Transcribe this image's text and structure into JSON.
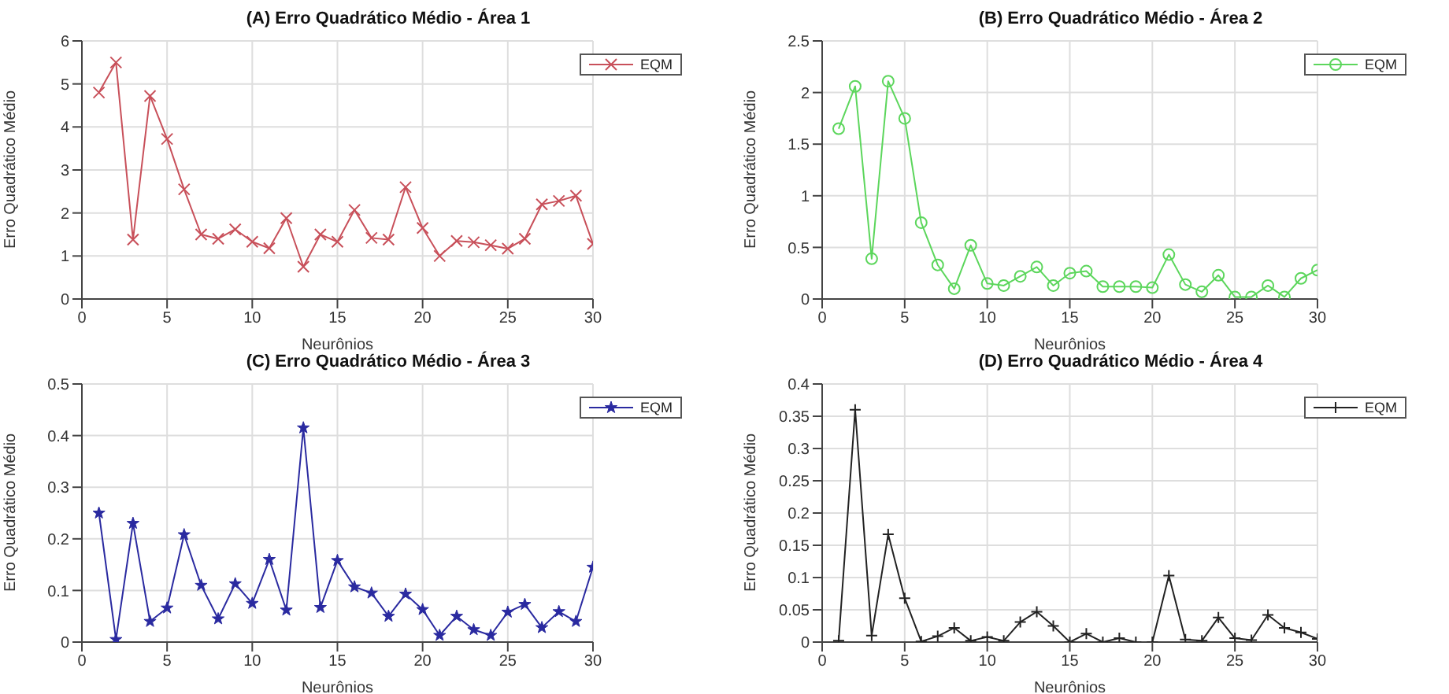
{
  "chart_data": [
    {
      "type": "line",
      "title": "(A) Erro Quadrático Médio - Área 1",
      "xlabel": "Neurônios",
      "ylabel": "Erro Quadrático Médio",
      "x": [
        1,
        2,
        3,
        4,
        5,
        6,
        7,
        8,
        9,
        10,
        11,
        12,
        13,
        14,
        15,
        16,
        17,
        18,
        19,
        20,
        21,
        22,
        23,
        24,
        25,
        26,
        27,
        28,
        29,
        30
      ],
      "xlim": [
        0,
        30
      ],
      "xticks": [
        0,
        5,
        10,
        15,
        20,
        25,
        30
      ],
      "ylim": [
        0,
        6
      ],
      "yticks": [
        0,
        1,
        2,
        3,
        4,
        5,
        6
      ],
      "grid": true,
      "legend": "top right",
      "marker": "cross",
      "series": [
        {
          "name": "EQM",
          "color": "#c8505a",
          "values": [
            4.8,
            5.5,
            1.38,
            4.72,
            3.72,
            2.55,
            1.5,
            1.4,
            1.62,
            1.33,
            1.18,
            1.88,
            0.75,
            1.5,
            1.33,
            2.07,
            1.42,
            1.38,
            2.6,
            1.65,
            1.0,
            1.35,
            1.32,
            1.25,
            1.17,
            1.4,
            2.2,
            2.28,
            2.4,
            1.28
          ]
        }
      ]
    },
    {
      "type": "line",
      "title": "(B) Erro Quadrático Médio - Área 2",
      "xlabel": "Neurônios",
      "ylabel": "Erro Quadrático Médio",
      "x": [
        1,
        2,
        3,
        4,
        5,
        6,
        7,
        8,
        9,
        10,
        11,
        12,
        13,
        14,
        15,
        16,
        17,
        18,
        19,
        20,
        21,
        22,
        23,
        24,
        25,
        26,
        27,
        28,
        29,
        30
      ],
      "xlim": [
        0,
        30
      ],
      "xticks": [
        0,
        5,
        10,
        15,
        20,
        25,
        30
      ],
      "ylim": [
        0,
        2.5
      ],
      "yticks": [
        0,
        0.5,
        1,
        1.5,
        2,
        2.5
      ],
      "grid": true,
      "legend": "top right",
      "marker": "circle",
      "series": [
        {
          "name": "EQM",
          "color": "#5cd65c",
          "values": [
            1.65,
            2.06,
            0.39,
            2.11,
            1.75,
            0.74,
            0.33,
            0.1,
            0.52,
            0.15,
            0.13,
            0.22,
            0.31,
            0.13,
            0.25,
            0.27,
            0.12,
            0.12,
            0.12,
            0.11,
            0.43,
            0.14,
            0.07,
            0.23,
            0.02,
            0.02,
            0.13,
            0.02,
            0.2,
            0.28
          ]
        }
      ]
    },
    {
      "type": "line",
      "title": "(C) Erro Quadrático Médio - Área 3",
      "xlabel": "Neurônios",
      "ylabel": "Erro Quadrático Médio",
      "x": [
        1,
        2,
        3,
        4,
        5,
        6,
        7,
        8,
        9,
        10,
        11,
        12,
        13,
        14,
        15,
        16,
        17,
        18,
        19,
        20,
        21,
        22,
        23,
        24,
        25,
        26,
        27,
        28,
        29,
        30
      ],
      "xlim": [
        0,
        30
      ],
      "xticks": [
        0,
        5,
        10,
        15,
        20,
        25,
        30
      ],
      "ylim": [
        0,
        0.5
      ],
      "yticks": [
        0,
        0.1,
        0.2,
        0.3,
        0.4,
        0.5
      ],
      "grid": true,
      "legend": "top right",
      "marker": "star",
      "series": [
        {
          "name": "EQM",
          "color": "#2a2aa0",
          "values": [
            0.25,
            0.005,
            0.23,
            0.04,
            0.066,
            0.208,
            0.11,
            0.045,
            0.113,
            0.075,
            0.16,
            0.062,
            0.415,
            0.067,
            0.158,
            0.107,
            0.095,
            0.05,
            0.093,
            0.063,
            0.013,
            0.05,
            0.024,
            0.013,
            0.058,
            0.073,
            0.028,
            0.059,
            0.04,
            0.145
          ]
        }
      ]
    },
    {
      "type": "line",
      "title": "(D) Erro Quadrático Médio - Área 4",
      "xlabel": "Neurônios",
      "ylabel": "Erro Quadrático Médio",
      "x": [
        1,
        2,
        3,
        4,
        5,
        6,
        7,
        8,
        9,
        10,
        11,
        12,
        13,
        14,
        15,
        16,
        17,
        18,
        19,
        20,
        21,
        22,
        23,
        24,
        25,
        26,
        27,
        28,
        29,
        30
      ],
      "xlim": [
        0,
        30
      ],
      "xticks": [
        0,
        5,
        10,
        15,
        20,
        25,
        30
      ],
      "ylim": [
        0,
        0.4
      ],
      "yticks": [
        0,
        0.05,
        0.1,
        0.15,
        0.2,
        0.25,
        0.3,
        0.35,
        0.4
      ],
      "grid": true,
      "legend": "top right",
      "marker": "plus",
      "series": [
        {
          "name": "EQM",
          "color": "#222222",
          "values": [
            0.002,
            0.36,
            0.01,
            0.167,
            0.068,
            0.001,
            0.009,
            0.022,
            0.002,
            0.008,
            0.002,
            0.031,
            0.047,
            0.025,
            0.0,
            0.013,
            0.0,
            0.006,
            0.0,
            0.0,
            0.103,
            0.004,
            0.002,
            0.038,
            0.006,
            0.003,
            0.042,
            0.022,
            0.015,
            0.005
          ]
        }
      ]
    }
  ]
}
